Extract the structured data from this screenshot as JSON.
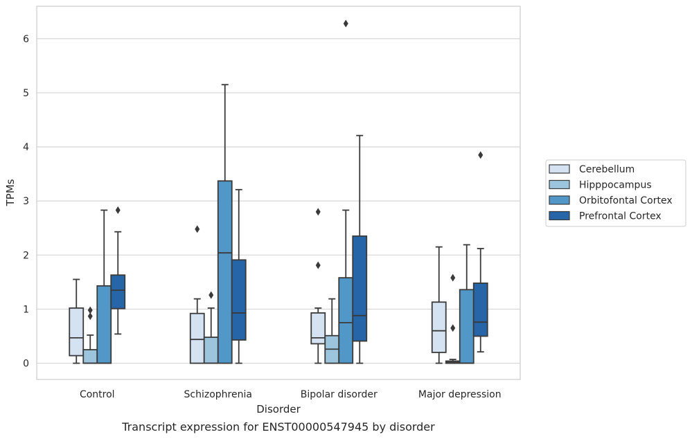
{
  "caption": "Transcript expression for ENST00000547945 by disorder",
  "chart_data": {
    "type": "boxplot",
    "xlabel": "Disorder",
    "ylabel": "TPMs",
    "ylim": [
      -0.3,
      6.6
    ],
    "yticks": [
      0,
      1,
      2,
      3,
      4,
      5,
      6
    ],
    "categories": [
      "Control",
      "Schizophrenia",
      "Bipolar disorder",
      "Major depression"
    ],
    "grid": "horizontal",
    "legend_position": "right",
    "series": [
      {
        "name": "Cerebellum",
        "color": "#d4e2f1",
        "boxes": [
          {
            "whislo": 0.0,
            "q1": 0.14,
            "med": 0.47,
            "q3": 1.02,
            "whishi": 1.55,
            "fliers": []
          },
          {
            "whislo": 0.0,
            "q1": 0.0,
            "med": 0.44,
            "q3": 0.92,
            "whishi": 1.19,
            "fliers": [
              2.48
            ]
          },
          {
            "whislo": 0.0,
            "q1": 0.36,
            "med": 0.47,
            "q3": 0.93,
            "whishi": 1.02,
            "fliers": [
              1.81,
              2.8
            ]
          },
          {
            "whislo": 0.0,
            "q1": 0.2,
            "med": 0.6,
            "q3": 1.13,
            "whishi": 2.15,
            "fliers": []
          }
        ]
      },
      {
        "name": "Hipppocampus",
        "color": "#9cc4dd",
        "boxes": [
          {
            "whislo": 0.0,
            "q1": 0.0,
            "med": 0.0,
            "q3": 0.25,
            "whishi": 0.52,
            "fliers": [
              0.87,
              0.98
            ]
          },
          {
            "whislo": 0.0,
            "q1": 0.0,
            "med": 0.0,
            "q3": 0.48,
            "whishi": 1.02,
            "fliers": [
              1.26
            ]
          },
          {
            "whislo": 0.0,
            "q1": 0.0,
            "med": 0.26,
            "q3": 0.51,
            "whishi": 1.19,
            "fliers": []
          },
          {
            "whislo": 0.0,
            "q1": 0.0,
            "med": 0.02,
            "q3": 0.04,
            "whishi": 0.07,
            "fliers": [
              0.65,
              1.58
            ]
          }
        ]
      },
      {
        "name": "Orbitofontal Cortex",
        "color": "#5197c7",
        "boxes": [
          {
            "whislo": 0.0,
            "q1": 0.0,
            "med": 0.0,
            "q3": 1.43,
            "whishi": 2.83,
            "fliers": []
          },
          {
            "whislo": 0.0,
            "q1": 0.0,
            "med": 2.04,
            "q3": 3.37,
            "whishi": 5.15,
            "fliers": []
          },
          {
            "whislo": 0.0,
            "q1": 0.0,
            "med": 0.75,
            "q3": 1.58,
            "whishi": 2.83,
            "fliers": [
              6.28
            ]
          },
          {
            "whislo": 0.0,
            "q1": 0.0,
            "med": 0.0,
            "q3": 1.36,
            "whishi": 2.19,
            "fliers": []
          }
        ]
      },
      {
        "name": "Prefrontal Cortex",
        "color": "#2565a8",
        "boxes": [
          {
            "whislo": 0.54,
            "q1": 1.01,
            "med": 1.35,
            "q3": 1.63,
            "whishi": 2.43,
            "fliers": [
              2.83
            ]
          },
          {
            "whislo": 0.0,
            "q1": 0.43,
            "med": 0.93,
            "q3": 1.91,
            "whishi": 3.21,
            "fliers": []
          },
          {
            "whislo": 0.0,
            "q1": 0.41,
            "med": 0.88,
            "q3": 2.35,
            "whishi": 4.21,
            "fliers": []
          },
          {
            "whislo": 0.21,
            "q1": 0.5,
            "med": 0.76,
            "q3": 1.48,
            "whishi": 2.12,
            "fliers": [
              3.85
            ]
          }
        ]
      }
    ]
  }
}
